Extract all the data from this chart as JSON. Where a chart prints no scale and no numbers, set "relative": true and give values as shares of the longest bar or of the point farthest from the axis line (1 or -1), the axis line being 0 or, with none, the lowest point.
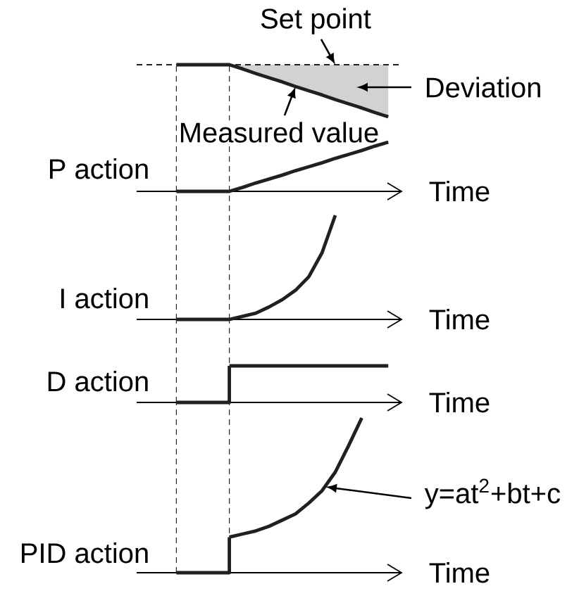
{
  "chart_data": [
    {
      "type": "line",
      "relative": true,
      "categories": [
        null,
        null,
        null,
        null,
        null,
        null,
        null,
        null,
        null,
        null,
        null,
        null,
        null,
        null,
        null,
        null,
        null,
        null,
        null,
        null,
        null
      ],
      "series": [
        {
          "name": "Set point",
          "color": "#231f20",
          "line_style": "dashed",
          "values": [
            1,
            1,
            1,
            1,
            1,
            1,
            1,
            1,
            1,
            1,
            1,
            1,
            1,
            1,
            1,
            1,
            1,
            1,
            1,
            1,
            1
          ]
        },
        {
          "name": "Measured value",
          "color": "#231f20",
          "values": [
            null,
            null,
            null,
            1,
            1,
            1,
            1,
            1,
            0.92,
            0.83,
            0.75,
            0.67,
            0.58,
            0.5,
            0.42,
            0.33,
            0.25,
            0.17,
            0.08,
            0,
            null
          ],
          "lower": [
            null,
            null,
            null,
            null,
            null,
            null,
            null,
            1,
            0.92,
            0.83,
            0.75,
            0.67,
            0.58,
            0.5,
            0.42,
            0.33,
            0.25,
            0.17,
            0.08,
            0,
            null
          ],
          "upper": [
            null,
            null,
            null,
            null,
            null,
            null,
            null,
            1,
            1,
            1,
            1,
            1,
            1,
            1,
            1,
            1,
            1,
            1,
            1,
            1,
            null
          ]
        }
      ],
      "annotations": [
        "Deviation"
      ]
    },
    {
      "type": "line",
      "relative": true,
      "xlabel": "Time",
      "ylabel": "P action",
      "categories": [
        null,
        null,
        null,
        null,
        null,
        null,
        null,
        null,
        null,
        null,
        null,
        null,
        null,
        null,
        null,
        null,
        null,
        null,
        null,
        null,
        null
      ],
      "series": [
        {
          "color": "#231f20",
          "values": [
            null,
            null,
            null,
            0,
            0,
            0,
            0,
            0,
            0.08,
            0.17,
            0.25,
            0.33,
            0.42,
            0.5,
            0.58,
            0.67,
            0.75,
            0.83,
            0.92,
            1,
            null
          ]
        }
      ]
    },
    {
      "type": "line",
      "relative": true,
      "xlabel": "Time",
      "ylabel": "I action",
      "categories": [
        null,
        null,
        null,
        null,
        null,
        null,
        null,
        null,
        null,
        null,
        null,
        null,
        null,
        null,
        null,
        null,
        null,
        null,
        null,
        null,
        null
      ],
      "series": [
        {
          "color": "#231f20",
          "values": [
            null,
            null,
            null,
            0,
            0,
            0,
            0,
            0,
            0.03,
            0.06,
            0.12,
            0.19,
            0.28,
            0.41,
            0.64,
            1,
            null,
            null,
            null,
            null,
            null
          ]
        }
      ]
    },
    {
      "type": "step",
      "relative": true,
      "xlabel": "Time",
      "ylabel": "D action",
      "categories": [
        null,
        null,
        null,
        null,
        null,
        null,
        null,
        null,
        null,
        null,
        null,
        null,
        null,
        null,
        null,
        null,
        null,
        null,
        null,
        null,
        null
      ],
      "series": [
        {
          "color": "#231f20",
          "values": [
            null,
            null,
            null,
            0,
            0,
            0,
            0,
            1,
            null,
            null,
            null,
            null,
            null,
            null,
            null,
            null,
            null,
            null,
            null,
            null,
            null
          ]
        },
        {
          "type": "line",
          "color": "#231f20",
          "values": [
            null,
            null,
            null,
            null,
            null,
            null,
            null,
            1,
            1,
            1,
            1,
            1,
            1,
            1,
            1,
            1,
            1,
            1,
            1,
            1,
            null
          ]
        }
      ]
    },
    {
      "type": "line",
      "relative": true,
      "xlabel": "Time",
      "ylabel": "PID action",
      "categories": [
        null,
        null,
        null,
        null,
        null,
        null,
        null,
        null,
        null,
        null,
        null,
        null,
        null,
        null,
        null,
        null,
        null,
        null,
        null,
        null,
        null
      ],
      "series": [
        {
          "type": "step",
          "color": "#231f20",
          "values": [
            null,
            null,
            null,
            0,
            0,
            0,
            0,
            0.23,
            null,
            null,
            null,
            null,
            null,
            null,
            null,
            null,
            null,
            null,
            null,
            null,
            null
          ]
        },
        {
          "color": "#231f20",
          "values": [
            null,
            null,
            null,
            null,
            null,
            null,
            null,
            0.23,
            0.25,
            0.27,
            0.3,
            0.34,
            0.38,
            0.45,
            0.53,
            0.65,
            0.82,
            1,
            null,
            null,
            null
          ]
        }
      ],
      "annotations": [
        "y=at$^{2}$+bt+c"
      ]
    }
  ]
}
